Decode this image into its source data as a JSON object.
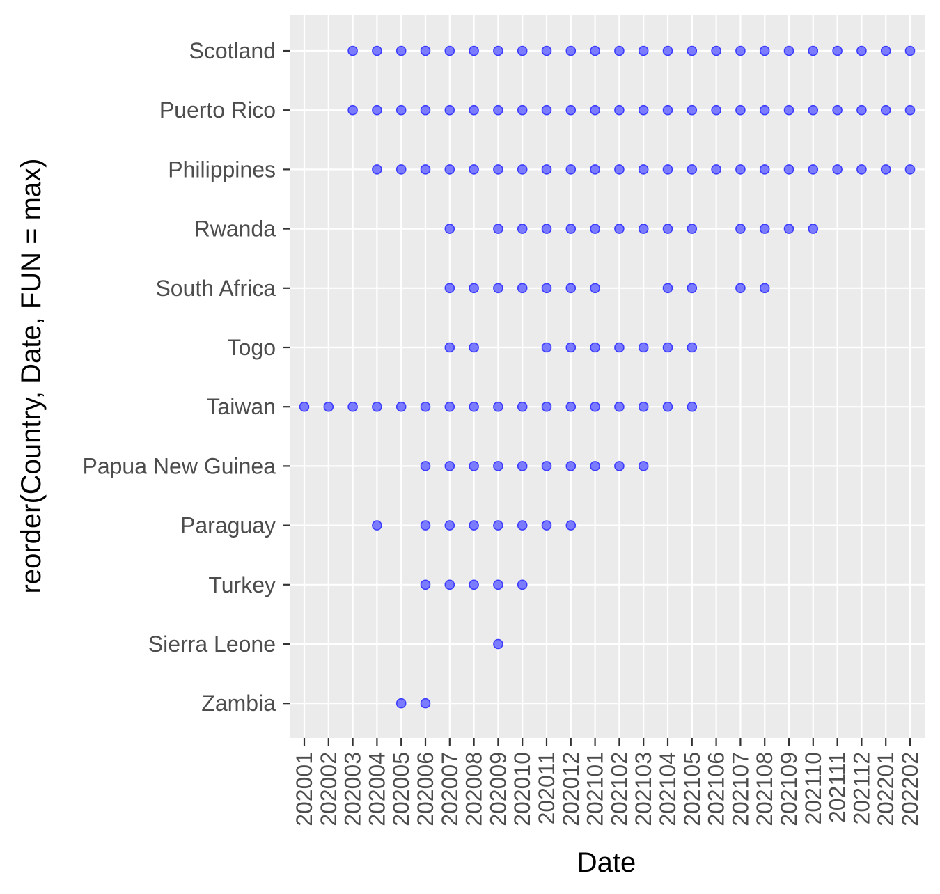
{
  "chart_data": {
    "type": "scatter",
    "title": "",
    "xlabel": "Date",
    "ylabel": "reorder(Country, Date, FUN = max)",
    "x": [
      "202001",
      "202002",
      "202003",
      "202004",
      "202005",
      "202006",
      "202007",
      "202008",
      "202009",
      "202010",
      "202011",
      "202012",
      "202101",
      "202102",
      "202103",
      "202104",
      "202105",
      "202106",
      "202107",
      "202108",
      "202109",
      "202110",
      "202111",
      "202112",
      "202201",
      "202202"
    ],
    "categories": [
      "Scotland",
      "Puerto Rico",
      "Philippines",
      "Rwanda",
      "South Africa",
      "Togo",
      "Taiwan",
      "Papua New Guinea",
      "Paraguay",
      "Turkey",
      "Sierra Leone",
      "Zambia"
    ],
    "points": {
      "Scotland": [
        "202003",
        "202004",
        "202005",
        "202006",
        "202007",
        "202008",
        "202009",
        "202010",
        "202011",
        "202012",
        "202101",
        "202102",
        "202103",
        "202104",
        "202105",
        "202106",
        "202107",
        "202108",
        "202109",
        "202110",
        "202111",
        "202112",
        "202201",
        "202202"
      ],
      "Puerto Rico": [
        "202003",
        "202004",
        "202005",
        "202006",
        "202007",
        "202008",
        "202009",
        "202010",
        "202011",
        "202012",
        "202101",
        "202102",
        "202103",
        "202104",
        "202105",
        "202106",
        "202107",
        "202108",
        "202109",
        "202110",
        "202111",
        "202112",
        "202201",
        "202202"
      ],
      "Philippines": [
        "202004",
        "202005",
        "202006",
        "202007",
        "202008",
        "202009",
        "202010",
        "202011",
        "202012",
        "202101",
        "202102",
        "202103",
        "202104",
        "202105",
        "202106",
        "202107",
        "202108",
        "202109",
        "202110",
        "202111",
        "202112",
        "202201",
        "202202"
      ],
      "Rwanda": [
        "202007",
        "202009",
        "202010",
        "202011",
        "202012",
        "202101",
        "202102",
        "202103",
        "202104",
        "202105",
        "202107",
        "202108",
        "202109",
        "202110"
      ],
      "South Africa": [
        "202007",
        "202008",
        "202009",
        "202010",
        "202011",
        "202012",
        "202101",
        "202104",
        "202105",
        "202107",
        "202108"
      ],
      "Togo": [
        "202007",
        "202008",
        "202011",
        "202012",
        "202101",
        "202102",
        "202103",
        "202104",
        "202105"
      ],
      "Taiwan": [
        "202001",
        "202002",
        "202003",
        "202004",
        "202005",
        "202006",
        "202007",
        "202008",
        "202009",
        "202010",
        "202011",
        "202012",
        "202101",
        "202102",
        "202103",
        "202104",
        "202105"
      ],
      "Papua New Guinea": [
        "202006",
        "202007",
        "202008",
        "202009",
        "202010",
        "202011",
        "202012",
        "202101",
        "202102",
        "202103"
      ],
      "Paraguay": [
        "202004",
        "202006",
        "202007",
        "202008",
        "202009",
        "202010",
        "202011",
        "202012"
      ],
      "Turkey": [
        "202006",
        "202007",
        "202008",
        "202009",
        "202010"
      ],
      "Sierra Leone": [
        "202009"
      ],
      "Zambia": [
        "202005",
        "202006"
      ]
    },
    "grid": true,
    "colors": {
      "panel": "#ebebeb",
      "grid": "#ffffff",
      "point_fill": "#7b7bff",
      "point_stroke": "#3c3cff"
    }
  }
}
